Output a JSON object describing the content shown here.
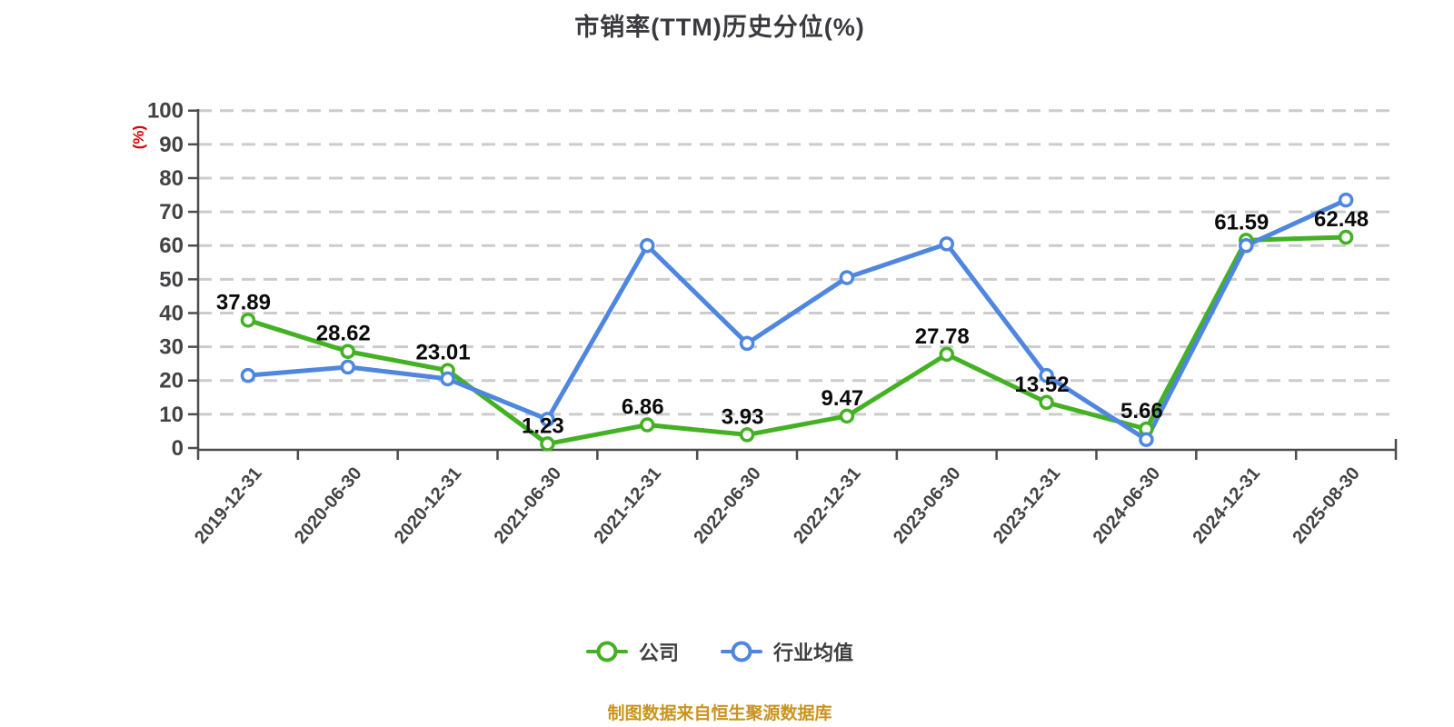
{
  "chart_data": {
    "type": "line",
    "title": "市销率(TTM)历史分位(%)",
    "xlabel": "",
    "ylabel": "(%)",
    "ylim": [
      0,
      100
    ],
    "yticks": [
      0,
      10,
      20,
      30,
      40,
      50,
      60,
      70,
      80,
      90,
      100
    ],
    "grid": "horizontal-dashed",
    "legend_position": "bottom-center",
    "x_label_rotation": -50,
    "categories": [
      "2019-12-31",
      "2020-06-30",
      "2020-12-31",
      "2021-06-30",
      "2021-12-31",
      "2022-06-30",
      "2022-12-31",
      "2023-06-30",
      "2023-12-31",
      "2024-06-30",
      "2024-12-31",
      "2025-08-30"
    ],
    "series": [
      {
        "name": "公司",
        "color": "#43b123",
        "marker": "circle-white-fill",
        "show_point_labels": true,
        "values": [
          37.89,
          28.62,
          23.01,
          1.23,
          6.86,
          3.93,
          9.47,
          27.78,
          13.52,
          5.66,
          61.59,
          62.48
        ]
      },
      {
        "name": "行业均值",
        "color": "#4e86e0",
        "marker": "circle-white-fill",
        "show_point_labels": false,
        "values": [
          21.5,
          24,
          20.5,
          8.5,
          60,
          31,
          50.5,
          60.5,
          21.5,
          2.5,
          60,
          73.5
        ]
      }
    ]
  },
  "footer": {
    "source_text": "制图数据来自恒生聚源数据库"
  },
  "colors": {
    "background": "#ffffff",
    "title_text": "#3a3a3e",
    "axis_line": "#4c4c4c",
    "tick_label_text": "#434346",
    "gridline": "#cccccc",
    "data_label_text": "#0b0b0b",
    "y_unit_red": "#dd0000",
    "footer_orange": "#c9941f",
    "marker_fill": "#ffffff"
  }
}
